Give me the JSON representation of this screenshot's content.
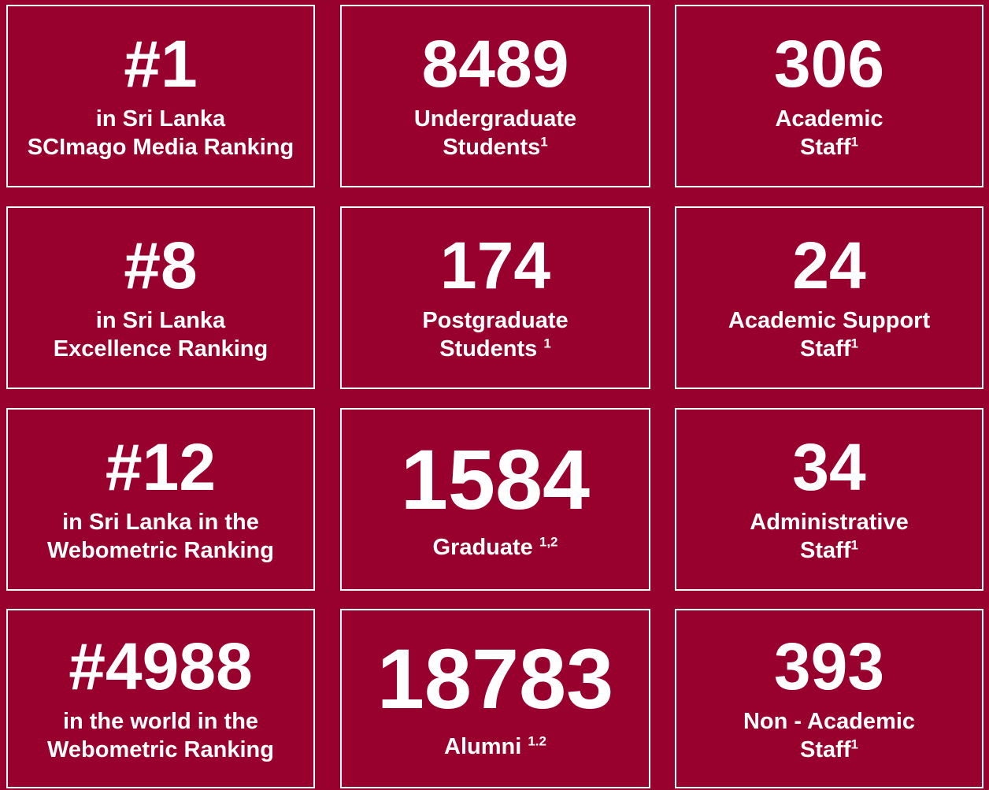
{
  "tiles": [
    {
      "number": "#1",
      "lines": [
        {
          "text": "in Sri Lanka"
        },
        {
          "text": "SCImago Media Ranking"
        }
      ]
    },
    {
      "number": "8489",
      "lines": [
        {
          "text": "Undergraduate"
        },
        {
          "text": "Students",
          "sup": "1"
        }
      ]
    },
    {
      "number": "306",
      "lines": [
        {
          "text": "Academic"
        },
        {
          "text": "Staff",
          "sup": "1"
        }
      ]
    },
    {
      "number": "#8",
      "lines": [
        {
          "text": "in Sri Lanka"
        },
        {
          "text": "Excellence Ranking"
        }
      ]
    },
    {
      "number": "174",
      "lines": [
        {
          "text": "Postgraduate"
        },
        {
          "text": "Students ",
          "sup": "1"
        }
      ]
    },
    {
      "number": "24",
      "lines": [
        {
          "text": "Academic Support"
        },
        {
          "text": "Staff",
          "sup": "1"
        }
      ]
    },
    {
      "number": "#12",
      "lines": [
        {
          "text": "in Sri Lanka in the"
        },
        {
          "text": "Webometric Ranking"
        }
      ]
    },
    {
      "number": "1584",
      "lines": [
        {
          "text": "Graduate ",
          "sup": "1,2"
        }
      ]
    },
    {
      "number": "34",
      "lines": [
        {
          "text": "Administrative"
        },
        {
          "text": "Staff",
          "sup": "1"
        }
      ]
    },
    {
      "number": "#4988",
      "lines": [
        {
          "text": "in the world in the"
        },
        {
          "text": "Webometric Ranking"
        }
      ]
    },
    {
      "number": "18783",
      "lines": [
        {
          "text": "Alumni ",
          "sup": "1.2"
        }
      ]
    },
    {
      "number": "393",
      "lines": [
        {
          "text": "Non - Academic"
        },
        {
          "text": "Staff",
          "sup": "1"
        }
      ]
    }
  ]
}
